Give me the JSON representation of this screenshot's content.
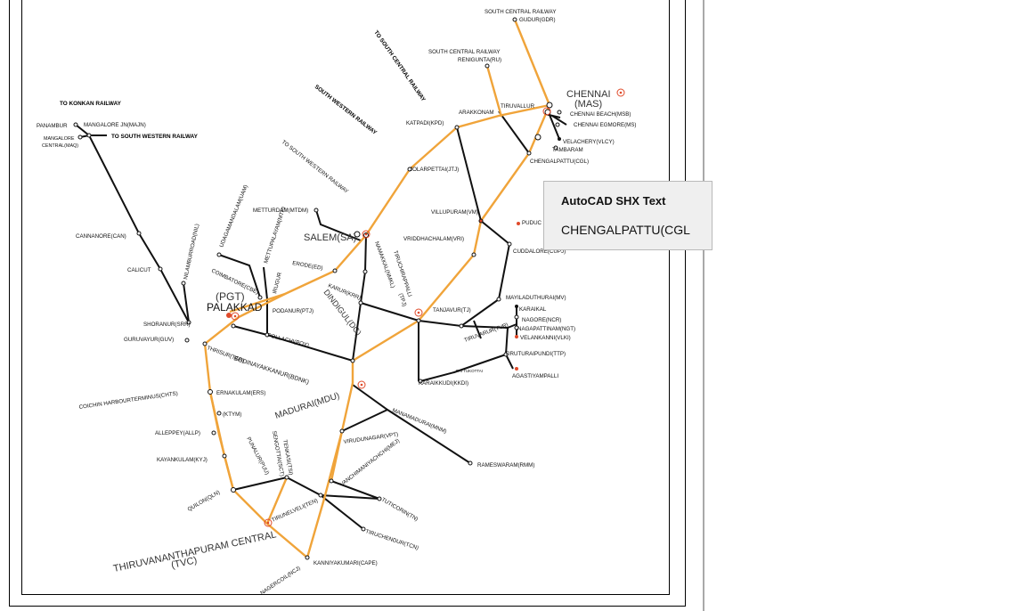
{
  "tooltip": {
    "title": "AutoCAD SHX Text",
    "value": "CHENGALPATTU(CGL"
  },
  "colors": {
    "route_highlight": "#f0a43a",
    "track": "#111111",
    "divisional_hq": "#e04a2a",
    "tooltip_bg": "#efefef"
  },
  "labels": {
    "south_central_railway_1": "SOUTH CENTRAL RAILWAY",
    "gudur": "GUDUR(GDR)",
    "to_south_central_railway": "TO SOUTH CENTRAL RAILWAY",
    "south_central_railway_2": "SOUTH CENTRAL RAILWAY",
    "renigunta": "RENIGUNTA(RU)",
    "chennai": "CHENNAI",
    "mas": "(MAS)",
    "tiruvallur": "TIRUVALLUR",
    "arakkonam": "ARAKKONAM",
    "katpadi": "KATPADI(KPD)",
    "chennai_beach": "CHENNAI BEACH(MSB)",
    "chennai_egmore": "CHENNAI EGMORE(MS)",
    "velachery": "VELACHERY(VLCY)",
    "tambaram": "TAMBARAM",
    "chengalpattu": "CHENGALPATTU(CGL)",
    "south_western_railway": "SOUTH WESTERN RAILWAY",
    "jolarpettai": "JOLARPETTAI(JTJ)",
    "to_konkan": "TO KONKAN RAILWAY",
    "panambur": "PANAMBUR",
    "mangalore_jn": "MANGALORE JN(MAJN)",
    "to_south_western_railway": "TO SOUTH WESTERN RAILWAY",
    "mangalore_central_1": "MANGALORE",
    "mangalore_central_2": "CENTRAL(MAQ)",
    "to_south_western_railway_2": "TO SOUTH WESTERN RAILWAY",
    "udagamandalam": "UDAGAMANDALAM(UAM)",
    "nilambur": "NILAMBURROAD(NIL)",
    "mettupalayam": "METTUPALAYAM(MTP)",
    "metturdam": "METTURDAM(MTDM)",
    "salem": "SALEM(SA)",
    "villupuram": "VILLUPURAM(VM)",
    "puducherry": "PUDUC",
    "vriddhachalam": "VRIDDHACHALAM(VRI)",
    "cuddalore": "CUDDALORE(CUPJ)",
    "cannanore": "CANNANORE(CAN)",
    "calicut": "CALICUT",
    "coimbatore": "COIMBATORE(CBE)",
    "irugur": "IRUGUR",
    "erode": "ERODE(ED)",
    "namakkal": "NAMAKKAL(NMKL)",
    "karur": "KARUR(KRR)",
    "tiruchirappalli": "TIRUCHIRAPPALLI",
    "tpj": "(TPJ)",
    "pgt": "(PGT)",
    "palakkad": "PALAKKAD",
    "podanur": "PODANUR(PTJ)",
    "shoranur": "SHORANUR(SRR)",
    "pollachi": "POLLACHI(POY)",
    "dindigul": "DINDIGUL(DG)",
    "thanjavur": "TANJAVUR(TJ)",
    "mayiladuthurai": "MAYILADUTHURAI(MV)",
    "karaikal": "KARAIKAL",
    "nagore": "NAGORE(NCR)",
    "nagapattinam": "NAGAPATTINAM(NGT)",
    "velankanni": "VELANKANNI(VLKI)",
    "guruvayur": "GURUVAYUR(GUV)",
    "thrissur": "THRISUR(TCR)",
    "tiruvarur": "TIRUVARUR(TVR)",
    "tiruturaipundi": "TIRUTURAIPUNDI(TTP)",
    "pattukottai": "PATTUKOTTAI",
    "agastiyampalli": "AGASTIYAMPALLI",
    "bodinayakkanur": "BODINAYAKKANUR(BDNK)",
    "karaikkudi": "KARAIKKUDI(KKDI)",
    "cochin": "COICHIN HARBOURTERMINUS(CHTS)",
    "ernakulam": "ERNAKULAM(ERS)",
    "ktym": "(KTYM)",
    "madurai": "MADURAI(MDU)",
    "manamadurai": "MANAMADURAI(MNM)",
    "alleppey": "ALLEPPEY(ALLP)",
    "virudhunagar": "VIRUDUNAGAR(VPT)",
    "rameswaram": "RAMESWARAM(RMM)",
    "kayankulam": "KAYANKULAM(KYJ)",
    "punalur": "PUNALUR(PUU)",
    "sengottai": "SENGOTTAI(SCT)",
    "tenkasi": "TENKASI(TSI)",
    "vanchi": "VANCHIMANIYACHCHI(MEJ)",
    "quilon": "QUILON(QLN)",
    "tuticorin": "TUTICORIN(TN)",
    "tirunelveli": "TIRUNELVELI(TEN)",
    "thiruvananthapuram": "THIRUVANANTHAPURAM CENTRAL",
    "tvc": "(TVC)",
    "tiruchendur": "TIRUCHENDUR(TCN)",
    "nagercoil": "NAGERCOIL(NCJ)",
    "kanniyakumari": "KANNIYAKUMARI(CAPE)"
  }
}
